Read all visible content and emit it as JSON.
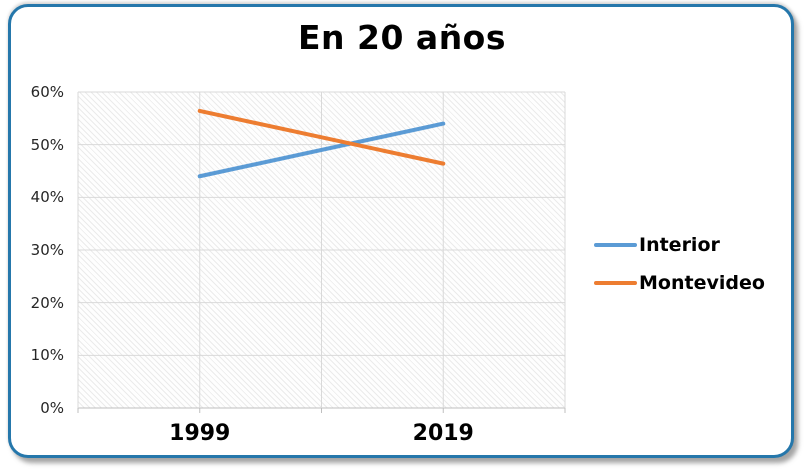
{
  "chart_data": {
    "type": "line",
    "title": "En 20 años",
    "categories": [
      "1999",
      "2019"
    ],
    "series": [
      {
        "name": "Interior",
        "values": [
          44.0,
          54.0
        ],
        "color": "#5B9BD5"
      },
      {
        "name": "Montevideo",
        "values": [
          56.4,
          46.4
        ],
        "color": "#ED7D31"
      }
    ],
    "xlabel": "",
    "ylabel": "",
    "ylim": [
      0,
      60
    ],
    "ytick_step": 10,
    "ytick_labels": [
      "0%",
      "10%",
      "20%",
      "30%",
      "40%",
      "50%",
      "60%"
    ],
    "grid": true,
    "legend_position": "right",
    "plot_background": "diagonal-hatch"
  },
  "colors": {
    "frame_border": "#2577AB",
    "gridline": "#D9D9D9",
    "axis_line": "#BFBFBF",
    "title_text": "#000000",
    "axis_text": "#262626"
  }
}
